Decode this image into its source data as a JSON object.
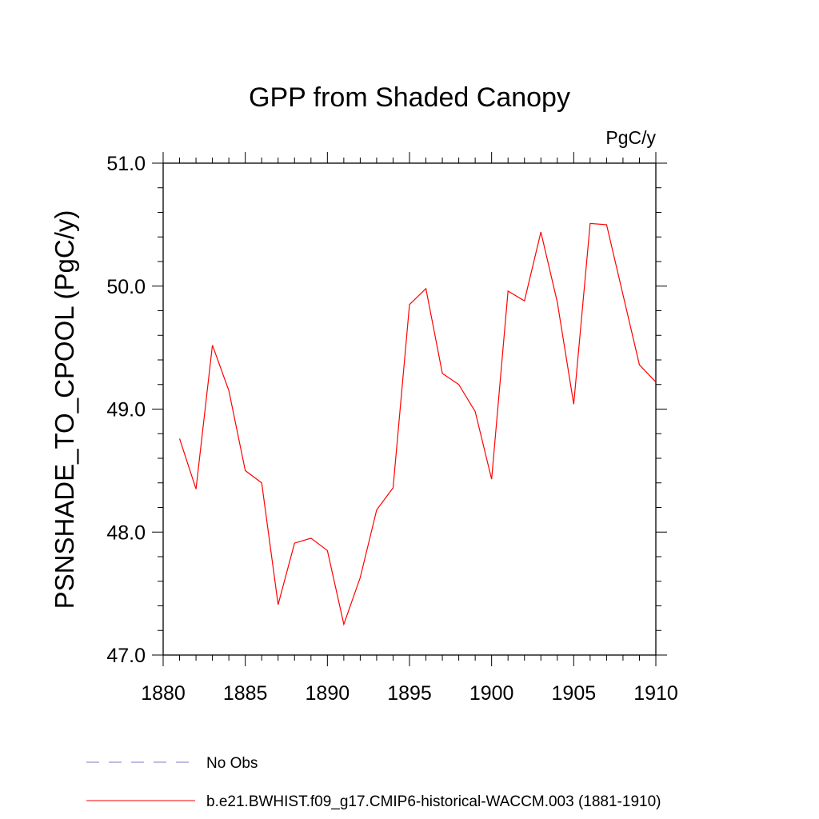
{
  "chart_data": {
    "type": "line",
    "title": "GPP from Shaded Canopy",
    "units_label": "PgC/y",
    "ylabel": "PSNSHADE_TO_CPOOL  (PgC/y)",
    "xlabel": "",
    "xlim": [
      1880,
      1910
    ],
    "ylim": [
      47.0,
      51.0
    ],
    "x_ticks": [
      1880,
      1885,
      1890,
      1895,
      1900,
      1905,
      1910
    ],
    "x_tick_labels": [
      "1880",
      "1885",
      "1890",
      "1895",
      "1900",
      "1905",
      "1910"
    ],
    "y_ticks": [
      47.0,
      48.0,
      49.0,
      50.0,
      51.0
    ],
    "y_tick_labels": [
      "47.0",
      "48.0",
      "49.0",
      "50.0",
      "51.0"
    ],
    "grid": false,
    "legend_position": "bottom-left, below plot",
    "series": [
      {
        "name": "No Obs",
        "color": "#7b7bc8",
        "dash": "dashed",
        "x": [],
        "y": []
      },
      {
        "name": "b.e21.BWHIST.f09_g17.CMIP6-historical-WACCM.003 (1881-1910)",
        "color": "#ff0000",
        "dash": "solid",
        "x": [
          1881,
          1882,
          1883,
          1884,
          1885,
          1886,
          1887,
          1888,
          1889,
          1890,
          1891,
          1892,
          1893,
          1894,
          1895,
          1896,
          1897,
          1898,
          1899,
          1900,
          1901,
          1902,
          1903,
          1904,
          1905,
          1906,
          1907,
          1908,
          1909,
          1910
        ],
        "y": [
          48.76,
          48.35,
          49.52,
          49.15,
          48.5,
          48.4,
          47.41,
          47.91,
          47.95,
          47.85,
          47.25,
          47.63,
          48.18,
          48.36,
          49.85,
          49.98,
          49.29,
          49.2,
          48.98,
          48.43,
          49.96,
          49.88,
          50.44,
          49.87,
          49.04,
          50.51,
          50.5,
          49.93,
          49.36,
          49.22
        ]
      }
    ]
  }
}
